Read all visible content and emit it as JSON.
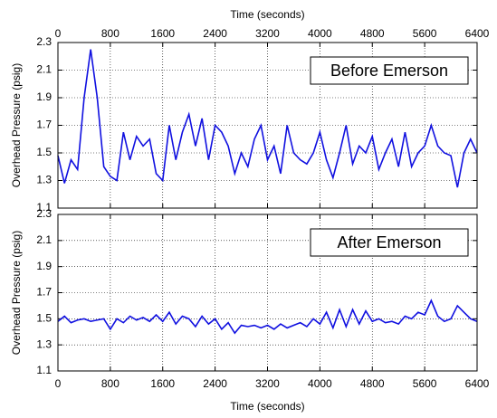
{
  "chart_data": [
    {
      "type": "line",
      "xlabel": "Time (seconds)",
      "ylabel": "Overhead Pressure (psig)",
      "annotation": "Before Emerson",
      "xaxis_position": "top",
      "grid": true,
      "xlim": [
        0,
        6400
      ],
      "xticks": [
        0,
        800,
        1600,
        2400,
        3200,
        4000,
        4800,
        5600,
        6400
      ],
      "ylim": [
        1.1,
        2.3
      ],
      "yticks": [
        1.1,
        1.3,
        1.5,
        1.7,
        1.9,
        2.1,
        2.3
      ],
      "x": [
        0,
        100,
        200,
        300,
        400,
        500,
        600,
        700,
        800,
        900,
        1000,
        1100,
        1200,
        1300,
        1400,
        1500,
        1600,
        1700,
        1800,
        1900,
        2000,
        2100,
        2200,
        2300,
        2400,
        2500,
        2600,
        2700,
        2800,
        2900,
        3000,
        3100,
        3200,
        3300,
        3400,
        3500,
        3600,
        3700,
        3800,
        3900,
        4000,
        4100,
        4200,
        4300,
        4400,
        4500,
        4600,
        4700,
        4800,
        4900,
        5000,
        5100,
        5200,
        5300,
        5400,
        5500,
        5600,
        5700,
        5800,
        5900,
        6000,
        6100,
        6200,
        6300,
        6400
      ],
      "series": [
        {
          "color": "#1010e0",
          "values": [
            1.48,
            1.28,
            1.45,
            1.38,
            1.9,
            2.25,
            1.9,
            1.4,
            1.33,
            1.3,
            1.65,
            1.45,
            1.62,
            1.55,
            1.6,
            1.35,
            1.3,
            1.7,
            1.45,
            1.65,
            1.78,
            1.55,
            1.75,
            1.45,
            1.7,
            1.65,
            1.55,
            1.35,
            1.5,
            1.4,
            1.6,
            1.7,
            1.45,
            1.55,
            1.35,
            1.7,
            1.5,
            1.45,
            1.42,
            1.5,
            1.65,
            1.45,
            1.32,
            1.5,
            1.7,
            1.42,
            1.55,
            1.5,
            1.62,
            1.38,
            1.5,
            1.6,
            1.4,
            1.65,
            1.4,
            1.5,
            1.55,
            1.7,
            1.55,
            1.5,
            1.48,
            1.25,
            1.5,
            1.6,
            1.5
          ]
        }
      ]
    },
    {
      "type": "line",
      "xlabel": "Time (seconds)",
      "ylabel": "Overhead Pressure (psig)",
      "annotation": "After Emerson",
      "xaxis_position": "bottom",
      "grid": true,
      "xlim": [
        0,
        6400
      ],
      "xticks": [
        0,
        800,
        1600,
        2400,
        3200,
        4000,
        4800,
        5600,
        6400
      ],
      "ylim": [
        1.1,
        2.3
      ],
      "yticks": [
        1.1,
        1.3,
        1.5,
        1.7,
        1.9,
        2.1,
        2.3
      ],
      "x": [
        0,
        100,
        200,
        300,
        400,
        500,
        600,
        700,
        800,
        900,
        1000,
        1100,
        1200,
        1300,
        1400,
        1500,
        1600,
        1700,
        1800,
        1900,
        2000,
        2100,
        2200,
        2300,
        2400,
        2500,
        2600,
        2700,
        2800,
        2900,
        3000,
        3100,
        3200,
        3300,
        3400,
        3500,
        3600,
        3700,
        3800,
        3900,
        4000,
        4100,
        4200,
        4300,
        4400,
        4500,
        4600,
        4700,
        4800,
        4900,
        5000,
        5100,
        5200,
        5300,
        5400,
        5500,
        5600,
        5700,
        5800,
        5900,
        6000,
        6100,
        6200,
        6300,
        6400
      ],
      "series": [
        {
          "color": "#1010e0",
          "values": [
            1.48,
            1.52,
            1.47,
            1.49,
            1.5,
            1.48,
            1.49,
            1.5,
            1.42,
            1.5,
            1.47,
            1.52,
            1.49,
            1.51,
            1.48,
            1.53,
            1.48,
            1.55,
            1.46,
            1.52,
            1.5,
            1.44,
            1.52,
            1.46,
            1.5,
            1.42,
            1.47,
            1.39,
            1.45,
            1.44,
            1.45,
            1.43,
            1.45,
            1.42,
            1.46,
            1.43,
            1.45,
            1.47,
            1.44,
            1.5,
            1.46,
            1.55,
            1.43,
            1.57,
            1.44,
            1.57,
            1.46,
            1.56,
            1.48,
            1.5,
            1.47,
            1.48,
            1.46,
            1.52,
            1.5,
            1.55,
            1.53,
            1.64,
            1.52,
            1.48,
            1.5,
            1.6,
            1.55,
            1.5,
            1.48
          ]
        }
      ]
    }
  ]
}
